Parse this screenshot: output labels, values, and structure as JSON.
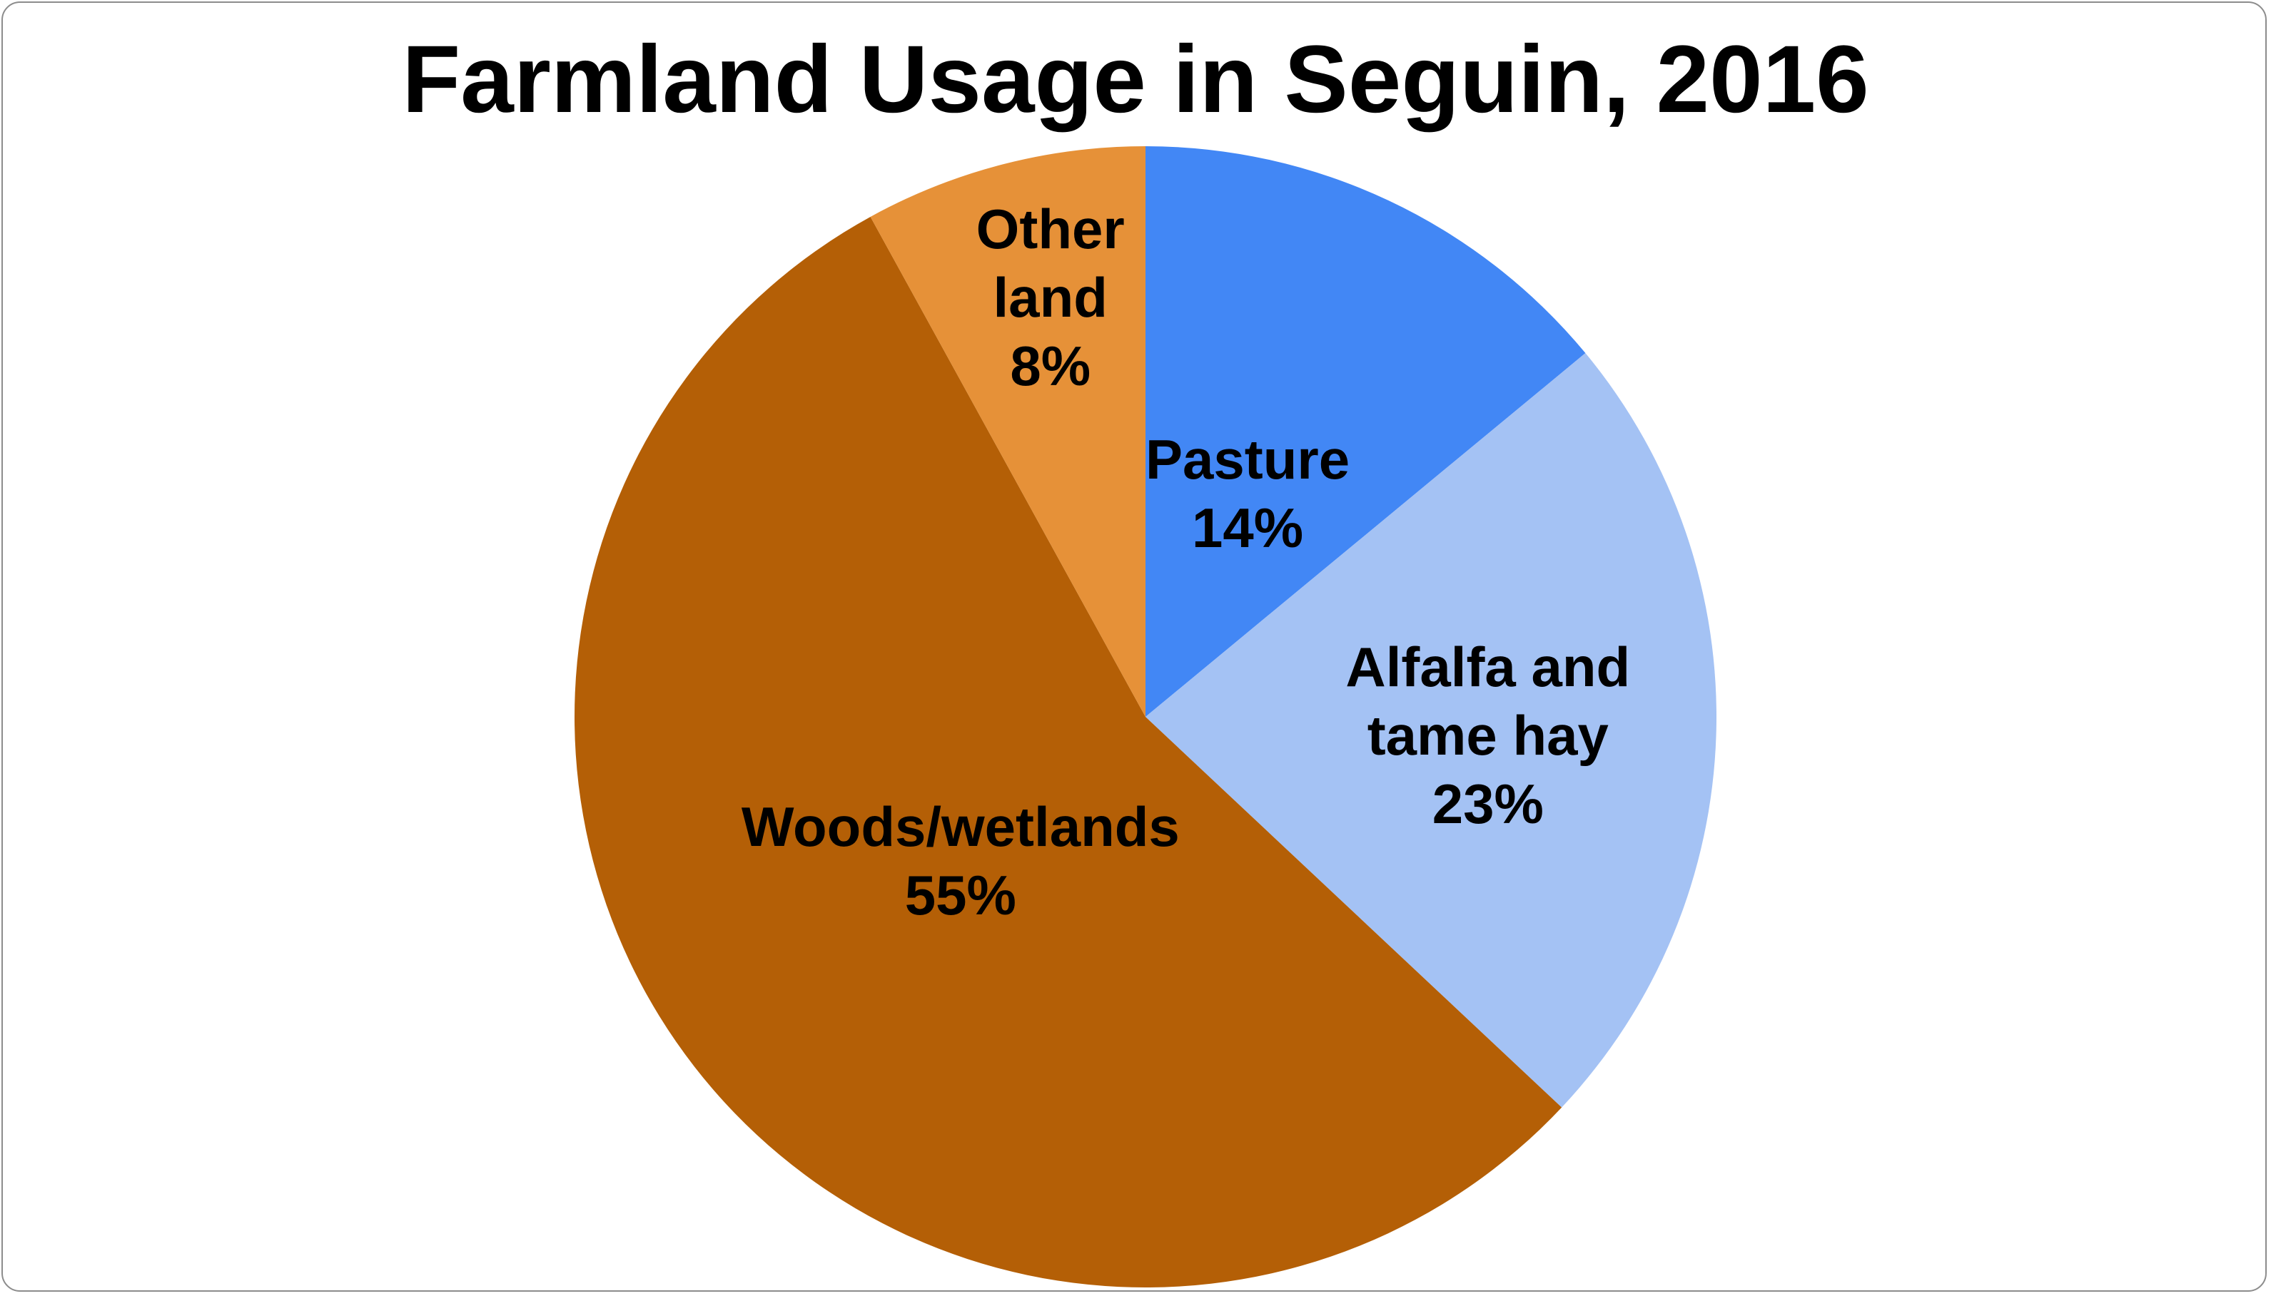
{
  "chart_data": {
    "type": "pie",
    "title": "Farmland Usage in Seguin, 2016",
    "start": "12 o'clock",
    "direction": "clockwise",
    "slices": [
      {
        "name": "Pasture",
        "label_lines": [
          "Pasture",
          "14%"
        ],
        "value": 14,
        "color": "#4287F5"
      },
      {
        "name": "Alfalfa and tame hay",
        "label_lines": [
          "Alfalfa and",
          "tame hay",
          "23%"
        ],
        "value": 23,
        "color": "#A4C2F4"
      },
      {
        "name": "Woods/wetlands",
        "label_lines": [
          "Woods/wetlands",
          "55%"
        ],
        "value": 55,
        "color": "#B45F06"
      },
      {
        "name": "Other land",
        "label_lines": [
          "Other",
          "land",
          "8%"
        ],
        "value": 8,
        "color": "#E69138"
      }
    ]
  }
}
